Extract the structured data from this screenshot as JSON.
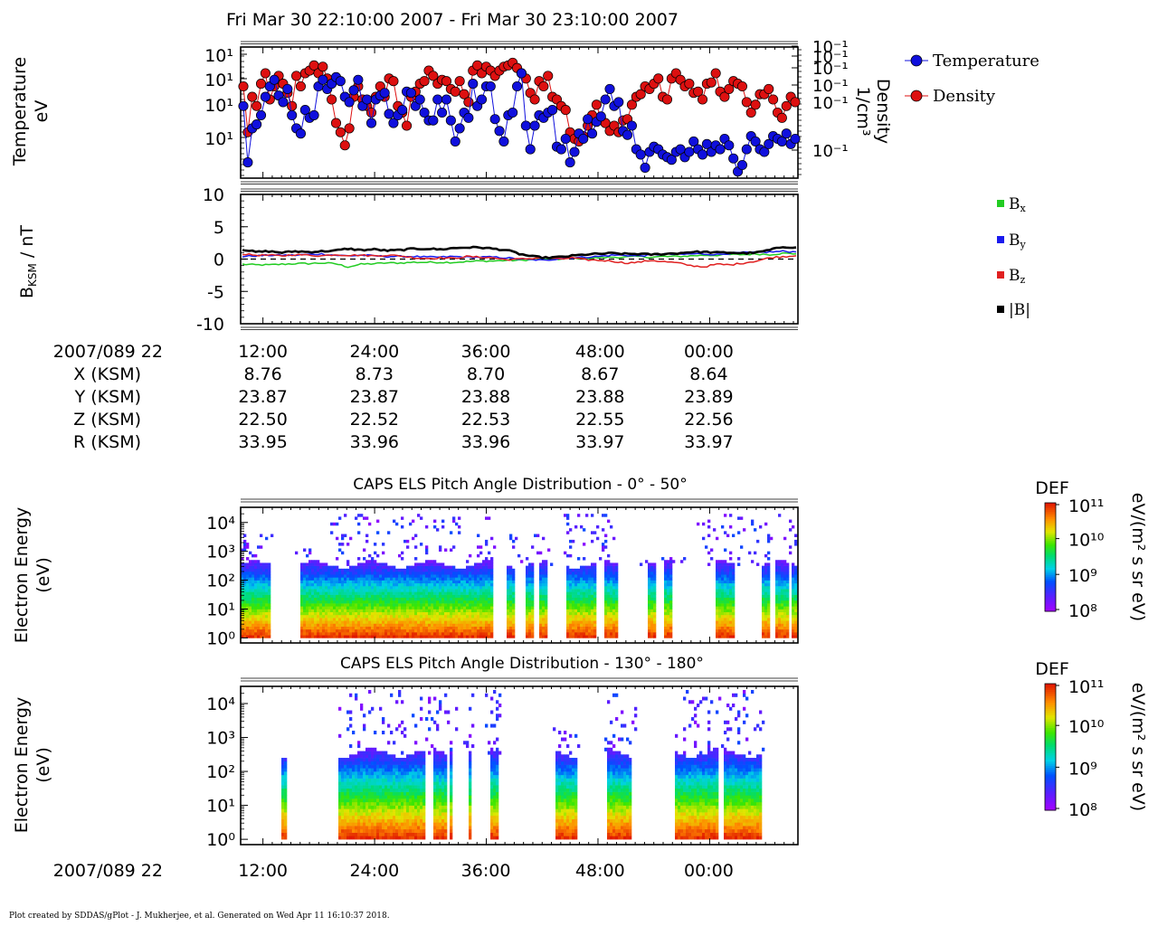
{
  "title": "Fri Mar 30 22:10:00 2007 - Fri Mar 30 23:10:00 2007",
  "footer": "Plot created by SDDAS/gPlot - J. Mukherjee, et al.  Generated on Wed Apr 11 16:10:37 2018.",
  "colors": {
    "temperature": "#1010dd",
    "density": "#dd1010",
    "bx": "#22cc22",
    "by": "#1a1aee",
    "bz": "#e02020",
    "bmag": "#000000"
  },
  "time_axis": {
    "start_label": "2007/089 22",
    "tick_labels": [
      "12:00",
      "24:00",
      "36:00",
      "48:00",
      "00:00"
    ]
  },
  "ephemeris": {
    "rows": [
      {
        "label": "X (KSM)",
        "values": [
          "8.76",
          "8.73",
          "8.70",
          "8.67",
          "8.64"
        ]
      },
      {
        "label": "Y (KSM)",
        "values": [
          "23.87",
          "23.87",
          "23.88",
          "23.88",
          "23.89"
        ]
      },
      {
        "label": "Z (KSM)",
        "values": [
          "22.50",
          "22.52",
          "22.53",
          "22.55",
          "22.56"
        ]
      },
      {
        "label": "R (KSM)",
        "values": [
          "33.95",
          "33.96",
          "33.96",
          "33.97",
          "33.97"
        ]
      }
    ]
  },
  "chart_data": [
    {
      "type": "line",
      "panel": "moments",
      "ylabel": [
        "Temperature",
        "eV"
      ],
      "ylabel_right": [
        "Density",
        "1/cm³"
      ],
      "y_ticks_left": [
        "10¹",
        "10¹",
        "10¹",
        "10¹"
      ],
      "y_ticks_right": [
        "10⁻¹",
        "10⁻¹",
        "10⁻¹",
        "10⁻¹",
        "10⁻¹",
        "10⁻¹"
      ],
      "legend": [
        "Temperature",
        "Density"
      ],
      "legend_position": "right",
      "series": [
        {
          "name": "Temperature",
          "values": [
            0.55,
            0.12,
            0.38,
            0.41,
            0.48,
            0.62,
            0.7,
            0.75,
            0.63,
            0.58,
            0.68,
            0.48,
            0.38,
            0.34,
            0.52,
            0.46,
            0.48,
            0.7,
            0.75,
            0.68,
            0.72,
            0.77,
            0.74,
            0.62,
            0.58,
            0.67,
            0.75,
            0.55,
            0.6,
            0.42,
            0.6,
            0.63,
            0.65,
            0.49,
            0.42,
            0.48,
            0.52,
            0.66,
            0.65,
            0.55,
            0.6,
            0.5,
            0.44,
            0.44,
            0.6,
            0.5,
            0.6,
            0.44,
            0.28,
            0.38,
            0.5,
            0.46,
            0.72,
            0.55,
            0.6,
            0.7,
            0.7,
            0.45,
            0.36,
            0.28,
            0.48,
            0.5,
            0.7,
            0.8,
            0.4,
            0.22,
            0.4,
            0.48,
            0.46,
            0.5,
            0.52,
            0.24,
            0.22,
            0.3,
            0.12,
            0.2,
            0.34,
            0.3,
            0.45,
            0.34,
            0.43,
            0.47,
            0.6,
            0.68,
            0.55,
            0.58,
            0.36,
            0.33,
            0.4,
            0.22,
            0.18,
            0.08,
            0.2,
            0.24,
            0.22,
            0.18,
            0.16,
            0.14,
            0.2,
            0.22,
            0.16,
            0.2,
            0.28,
            0.22,
            0.18,
            0.26,
            0.2,
            0.25,
            0.22,
            0.3,
            0.25,
            0.15,
            0.05,
            0.1,
            0.22,
            0.32,
            0.28,
            0.22,
            0.2,
            0.26,
            0.32,
            0.3,
            0.28,
            0.34,
            0.26,
            0.3
          ]
        },
        {
          "name": "Density",
          "values": [
            0.7,
            0.35,
            0.62,
            0.55,
            0.72,
            0.8,
            0.6,
            0.7,
            0.78,
            0.72,
            0.65,
            0.55,
            0.78,
            0.7,
            0.8,
            0.82,
            0.86,
            0.8,
            0.85,
            0.76,
            0.6,
            0.42,
            0.35,
            0.25,
            0.38,
            0.62,
            0.7,
            0.6,
            0.55,
            0.5,
            0.62,
            0.7,
            0.62,
            0.76,
            0.74,
            0.55,
            0.5,
            0.4,
            0.62,
            0.66,
            0.72,
            0.74,
            0.82,
            0.78,
            0.72,
            0.75,
            0.74,
            0.68,
            0.66,
            0.74,
            0.64,
            0.58,
            0.82,
            0.86,
            0.8,
            0.85,
            0.82,
            0.78,
            0.82,
            0.85,
            0.86,
            0.88,
            0.84,
            0.8,
            0.76,
            0.65,
            0.6,
            0.74,
            0.7,
            0.78,
            0.62,
            0.6,
            0.55,
            0.52,
            0.35,
            0.3,
            0.28,
            0.32,
            0.4,
            0.48,
            0.56,
            0.45,
            0.42,
            0.36,
            0.4,
            0.35,
            0.44,
            0.45,
            0.56,
            0.62,
            0.64,
            0.7,
            0.68,
            0.72,
            0.76,
            0.62,
            0.6,
            0.76,
            0.8,
            0.75,
            0.7,
            0.72,
            0.65,
            0.66,
            0.6,
            0.72,
            0.73,
            0.8,
            0.66,
            0.62,
            0.68,
            0.74,
            0.72,
            0.7,
            0.58,
            0.5,
            0.56,
            0.64,
            0.64,
            0.68,
            0.6,
            0.5,
            0.46,
            0.55,
            0.62,
            0.58
          ]
        }
      ]
    },
    {
      "type": "line",
      "panel": "magnetic_field",
      "ylabel": "B",
      "ylabel_sub": "KSM",
      "ylabel_unit": " / nT",
      "ylim": [
        -10,
        10
      ],
      "y_ticks": [
        "10",
        "5",
        "0",
        "-5",
        "-10"
      ],
      "legend": [
        "Bx",
        "By",
        "Bz",
        "|B|"
      ],
      "legend_position": "right",
      "series": [
        {
          "name": "Bx",
          "values": [
            -0.8,
            -0.9,
            -0.9,
            -0.8,
            -0.7,
            -0.7,
            -0.6,
            -0.7,
            -1.2,
            -0.8,
            -0.7,
            -0.6,
            -0.6,
            -0.5,
            -0.5,
            -0.5,
            -0.5,
            -0.4,
            -0.3,
            -0.3,
            -0.2,
            -0.2,
            -0.1,
            0.0,
            0.0,
            0.1,
            0.1,
            0.2,
            0.3,
            0.3,
            0.4,
            0.3,
            0.4,
            0.4,
            0.5,
            0.6,
            0.6,
            0.7,
            0.7,
            0.8,
            0.7,
            0.9,
            0.8
          ]
        },
        {
          "name": "By",
          "values": [
            0.4,
            0.5,
            0.6,
            0.6,
            0.6,
            0.7,
            0.8,
            0.6,
            0.5,
            0.6,
            0.5,
            0.4,
            0.4,
            0.4,
            0.3,
            0.3,
            0.4,
            0.3,
            0.3,
            0.3,
            0.2,
            0.0,
            -0.1,
            -0.2,
            0.1,
            0.2,
            0.3,
            0.4,
            0.6,
            0.6,
            0.5,
            0.6,
            0.8,
            0.7,
            0.8,
            0.8,
            0.7,
            0.9,
            1.0,
            1.0,
            1.1,
            1.2,
            1.1
          ]
        },
        {
          "name": "Bz",
          "values": [
            0.8,
            0.6,
            0.6,
            0.5,
            0.7,
            0.6,
            0.5,
            0.7,
            0.6,
            0.6,
            0.5,
            0.6,
            0.5,
            0.2,
            0.1,
            0.2,
            0.1,
            0.4,
            0.3,
            0.2,
            -0.1,
            0.0,
            0.1,
            0.3,
            0.0,
            0.2,
            -0.1,
            -0.2,
            -0.3,
            -0.6,
            -0.5,
            -0.2,
            -0.4,
            -0.6,
            -1.0,
            -1.2,
            -0.8,
            -0.9,
            -0.6,
            -0.3,
            0.2,
            0.4,
            0.5
          ]
        },
        {
          "name": "|B|",
          "values": [
            1.5,
            1.1,
            1.2,
            1.0,
            1.2,
            1.1,
            1.2,
            1.3,
            1.6,
            1.4,
            1.5,
            1.3,
            1.4,
            1.6,
            1.6,
            1.5,
            1.7,
            1.8,
            1.8,
            1.6,
            1.4,
            0.8,
            0.4,
            0.2,
            0.3,
            0.5,
            0.7,
            0.8,
            0.9,
            0.8,
            0.8,
            0.7,
            0.8,
            0.9,
            1.1,
            1.1,
            1.0,
            1.0,
            0.9,
            1.0,
            1.4,
            1.9,
            1.8
          ]
        }
      ]
    },
    {
      "type": "heatmap",
      "panel": "els_pa_0_50",
      "title": "CAPS ELS Pitch Angle Distribution - 0° - 50°",
      "ylabel": [
        "Electron Energy",
        "(eV)"
      ],
      "y_ticks": [
        "10⁴",
        "10³",
        "10²",
        "10¹",
        "10⁰"
      ],
      "colorbar": {
        "label": "DEF",
        "unit": "eV/(m² s sr eV)",
        "ticks": [
          "10¹¹",
          "10¹⁰",
          "10⁹",
          "10⁸"
        ]
      },
      "data_intervals": [
        [
          0.0,
          0.055
        ],
        [
          0.105,
          0.455
        ],
        [
          0.48,
          0.495
        ],
        [
          0.51,
          0.525
        ],
        [
          0.535,
          0.55
        ],
        [
          0.585,
          0.64
        ],
        [
          0.655,
          0.68
        ],
        [
          0.73,
          0.745
        ],
        [
          0.76,
          0.775
        ],
        [
          0.855,
          0.89
        ],
        [
          0.935,
          0.95
        ],
        [
          0.96,
          0.985
        ],
        [
          0.992,
          1.0
        ]
      ],
      "upper_extent": [
        [
          0.0,
          0.06,
          3.6
        ],
        [
          0.1,
          0.16,
          3.0
        ],
        [
          0.16,
          0.46,
          4.3
        ],
        [
          0.48,
          0.56,
          3.6
        ],
        [
          0.58,
          0.68,
          4.3
        ],
        [
          0.7,
          0.8,
          2.8
        ],
        [
          0.82,
          0.9,
          4.3
        ],
        [
          0.9,
          1.0,
          4.2
        ]
      ]
    },
    {
      "type": "heatmap",
      "panel": "els_pa_130_180",
      "title": "CAPS ELS Pitch Angle Distribution - 130° - 180°",
      "ylabel": [
        "Electron Energy",
        "(eV)"
      ],
      "y_ticks": [
        "10⁴",
        "10³",
        "10²",
        "10¹",
        "10⁰"
      ],
      "colorbar": {
        "label": "DEF",
        "unit": "eV/(m² s sr eV)",
        "ticks": [
          "10¹¹",
          "10¹⁰",
          "10⁹",
          "10⁸"
        ]
      },
      "data_intervals": [
        [
          0.075,
          0.085
        ],
        [
          0.175,
          0.33
        ],
        [
          0.345,
          0.37
        ],
        [
          0.375,
          0.38
        ],
        [
          0.41,
          0.415
        ],
        [
          0.45,
          0.465
        ],
        [
          0.565,
          0.605
        ],
        [
          0.66,
          0.7
        ],
        [
          0.78,
          0.86
        ],
        [
          0.87,
          0.935
        ]
      ],
      "upper_extent": [
        [
          0.07,
          0.09,
          2.4
        ],
        [
          0.17,
          0.34,
          4.4
        ],
        [
          0.34,
          0.42,
          4.2
        ],
        [
          0.44,
          0.47,
          4.4
        ],
        [
          0.56,
          0.61,
          3.6
        ],
        [
          0.65,
          0.71,
          4.2
        ],
        [
          0.77,
          0.94,
          4.4
        ]
      ]
    }
  ]
}
